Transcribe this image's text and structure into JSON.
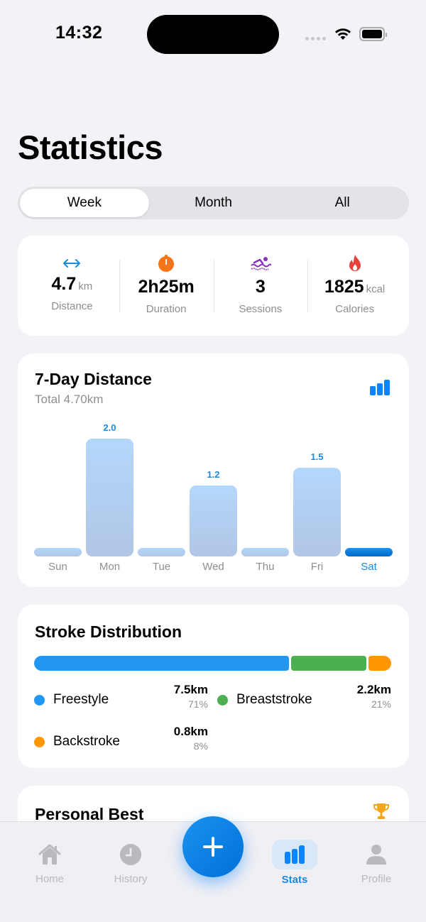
{
  "status_bar": {
    "time": "14:32"
  },
  "header": {
    "title": "Statistics"
  },
  "period_selector": {
    "options": [
      "Week",
      "Month",
      "All"
    ],
    "selected": "Week"
  },
  "summary": {
    "distance": {
      "icon": "arrows-horizontal-icon",
      "value": "4.7",
      "unit": "km",
      "label": "Distance",
      "color": "#1a8ae0"
    },
    "duration": {
      "icon": "stopwatch-icon",
      "value": "2h25m",
      "label": "Duration",
      "color": "#f5761a"
    },
    "sessions": {
      "icon": "swimmer-icon",
      "value": "3",
      "label": "Sessions",
      "color": "#8a2fc0"
    },
    "calories": {
      "icon": "flame-icon",
      "value": "1825",
      "unit": "kcal",
      "label": "Calories",
      "color": "#e8403a"
    }
  },
  "distance_chart": {
    "title": "7-Day Distance",
    "subtitle": "Total 4.70km",
    "toggle_icon": "bar-chart-icon"
  },
  "chart_data": {
    "type": "bar",
    "title": "7-Day Distance",
    "subtitle": "Total 4.70km",
    "categories": [
      "Sun",
      "Mon",
      "Tue",
      "Wed",
      "Thu",
      "Fri",
      "Sat"
    ],
    "values": [
      0,
      2.0,
      0,
      1.2,
      0,
      1.5,
      0
    ],
    "value_labels": [
      "",
      "2.0",
      "",
      "1.2",
      "",
      "1.5",
      ""
    ],
    "highlighted": "Sat",
    "xlabel": "",
    "ylabel": "km",
    "unit": "km"
  },
  "stroke_distribution": {
    "title": "Stroke Distribution",
    "items": [
      {
        "name": "Freestyle",
        "km": "7.5km",
        "pct": "71%",
        "color": "#2196f3"
      },
      {
        "name": "Breaststroke",
        "km": "2.2km",
        "pct": "21%",
        "color": "#4caf50"
      },
      {
        "name": "Backstroke",
        "km": "0.8km",
        "pct": "8%",
        "color": "#ff9800"
      }
    ]
  },
  "personal_best": {
    "title": "Personal Best",
    "icon": "trophy-icon"
  },
  "tabbar": {
    "items": [
      {
        "label": "Home",
        "icon": "house-icon"
      },
      {
        "label": "History",
        "icon": "clock-icon"
      },
      {
        "label": "Stats",
        "icon": "bar-chart-icon",
        "active": true
      },
      {
        "label": "Profile",
        "icon": "person-icon"
      }
    ],
    "fab_icon": "plus-icon"
  }
}
